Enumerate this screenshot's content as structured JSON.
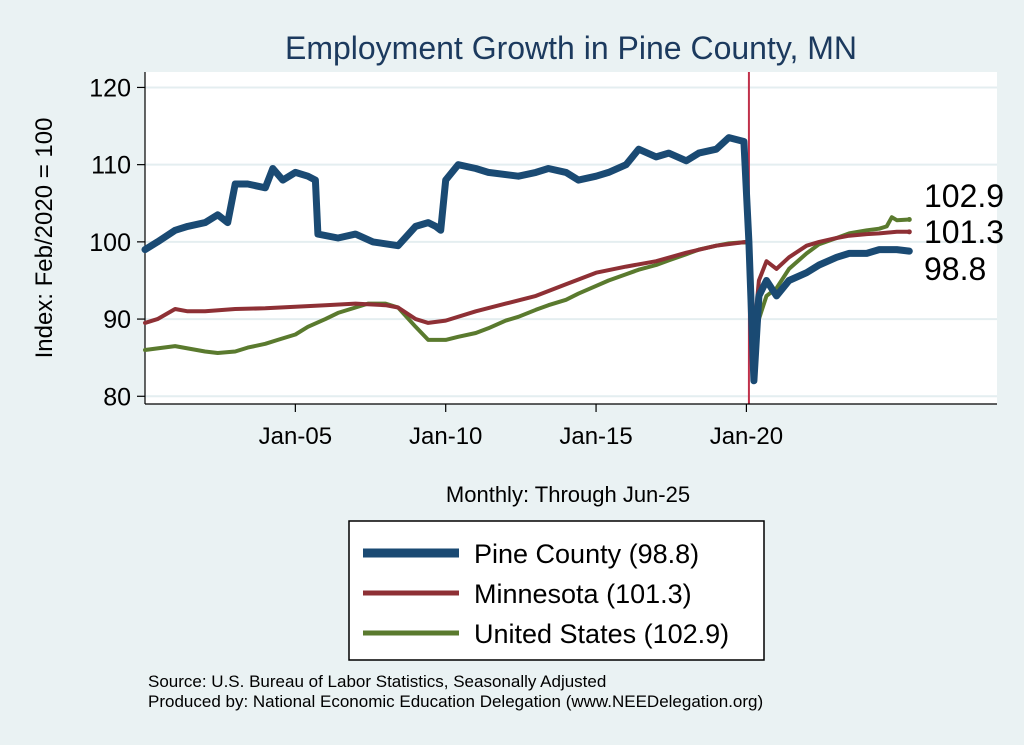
{
  "chart_data": {
    "type": "line",
    "title": "Employment Growth in Pine  County, MN",
    "ylabel": "Index: Feb/2020 = 100",
    "xlabel": "Monthly: Through Jun-25",
    "ylim": [
      79,
      122
    ],
    "xlim": [
      "2000-01",
      "2028-05"
    ],
    "yticks": [
      80,
      90,
      100,
      110,
      120
    ],
    "xticks": [
      {
        "date": "2005-01",
        "label": "Jan-05"
      },
      {
        "date": "2010-01",
        "label": "Jan-10"
      },
      {
        "date": "2015-01",
        "label": "Jan-15"
      },
      {
        "date": "2020-01",
        "label": "Jan-20"
      }
    ],
    "grid": true,
    "reference_line": {
      "date": "2020-02",
      "color": "#c0304a"
    },
    "legend_position": "bottom",
    "series": [
      {
        "name": "Pine  County (98.8)",
        "color": "#1a4a73",
        "end_label": "98.8",
        "points": [
          [
            "2000-01",
            99
          ],
          [
            "2000-06",
            100
          ],
          [
            "2001-01",
            101.5
          ],
          [
            "2001-06",
            102
          ],
          [
            "2002-01",
            102.5
          ],
          [
            "2002-06",
            103.5
          ],
          [
            "2002-10",
            102.5
          ],
          [
            "2003-01",
            107.5
          ],
          [
            "2003-06",
            107.5
          ],
          [
            "2004-01",
            107
          ],
          [
            "2004-04",
            109.5
          ],
          [
            "2004-08",
            108
          ],
          [
            "2005-01",
            109
          ],
          [
            "2005-06",
            108.5
          ],
          [
            "2005-09",
            108
          ],
          [
            "2005-10",
            101
          ],
          [
            "2006-06",
            100.5
          ],
          [
            "2007-01",
            101
          ],
          [
            "2007-08",
            100
          ],
          [
            "2008-06",
            99.5
          ],
          [
            "2009-01",
            102
          ],
          [
            "2009-06",
            102.5
          ],
          [
            "2009-09",
            102
          ],
          [
            "2009-11",
            101.5
          ],
          [
            "2010-01",
            108
          ],
          [
            "2010-06",
            110
          ],
          [
            "2011-01",
            109.5
          ],
          [
            "2011-06",
            109
          ],
          [
            "2012-06",
            108.5
          ],
          [
            "2013-01",
            109
          ],
          [
            "2013-06",
            109.5
          ],
          [
            "2014-01",
            109
          ],
          [
            "2014-06",
            108
          ],
          [
            "2015-01",
            108.5
          ],
          [
            "2015-06",
            109
          ],
          [
            "2016-01",
            110
          ],
          [
            "2016-06",
            112
          ],
          [
            "2017-01",
            111
          ],
          [
            "2017-06",
            111.5
          ],
          [
            "2018-01",
            110.5
          ],
          [
            "2018-06",
            111.5
          ],
          [
            "2019-01",
            112
          ],
          [
            "2019-06",
            113.5
          ],
          [
            "2019-12",
            113
          ],
          [
            "2020-02",
            100
          ],
          [
            "2020-04",
            82
          ],
          [
            "2020-06",
            93
          ],
          [
            "2020-09",
            95
          ],
          [
            "2021-01",
            93
          ],
          [
            "2021-06",
            95
          ],
          [
            "2022-01",
            96
          ],
          [
            "2022-06",
            97
          ],
          [
            "2023-01",
            98
          ],
          [
            "2023-06",
            98.5
          ],
          [
            "2024-01",
            98.5
          ],
          [
            "2024-06",
            99
          ],
          [
            "2025-01",
            99
          ],
          [
            "2025-06",
            98.8
          ]
        ]
      },
      {
        "name": "Minnesota (101.3)",
        "color": "#8e3035",
        "end_label": "101.3",
        "points": [
          [
            "2000-01",
            89.5
          ],
          [
            "2000-06",
            90
          ],
          [
            "2001-01",
            91.3
          ],
          [
            "2001-06",
            91.0
          ],
          [
            "2002-01",
            91.0
          ],
          [
            "2003-01",
            91.3
          ],
          [
            "2004-01",
            91.4
          ],
          [
            "2005-01",
            91.6
          ],
          [
            "2006-01",
            91.8
          ],
          [
            "2007-01",
            92.0
          ],
          [
            "2008-01",
            91.8
          ],
          [
            "2008-06",
            91.5
          ],
          [
            "2009-01",
            90.0
          ],
          [
            "2009-06",
            89.5
          ],
          [
            "2010-01",
            89.8
          ],
          [
            "2011-01",
            91.0
          ],
          [
            "2012-01",
            92.0
          ],
          [
            "2013-01",
            93.0
          ],
          [
            "2014-01",
            94.5
          ],
          [
            "2015-01",
            96.0
          ],
          [
            "2016-01",
            96.8
          ],
          [
            "2017-01",
            97.5
          ],
          [
            "2018-01",
            98.6
          ],
          [
            "2019-01",
            99.5
          ],
          [
            "2020-01",
            100.0
          ],
          [
            "2020-02",
            100.0
          ],
          [
            "2020-04",
            88.0
          ],
          [
            "2020-06",
            95.0
          ],
          [
            "2020-09",
            97.5
          ],
          [
            "2021-01",
            96.5
          ],
          [
            "2021-06",
            98.0
          ],
          [
            "2022-01",
            99.5
          ],
          [
            "2022-06",
            100.0
          ],
          [
            "2023-01",
            100.5
          ],
          [
            "2023-06",
            100.8
          ],
          [
            "2024-01",
            101.0
          ],
          [
            "2024-06",
            101.1
          ],
          [
            "2025-01",
            101.3
          ],
          [
            "2025-06",
            101.3
          ]
        ]
      },
      {
        "name": "United States (102.9)",
        "color": "#5a7a2e",
        "end_label": "102.9",
        "points": [
          [
            "2000-01",
            86.0
          ],
          [
            "2000-06",
            86.2
          ],
          [
            "2001-01",
            86.5
          ],
          [
            "2001-06",
            86.2
          ],
          [
            "2002-01",
            85.8
          ],
          [
            "2002-06",
            85.6
          ],
          [
            "2003-01",
            85.8
          ],
          [
            "2003-06",
            86.3
          ],
          [
            "2004-01",
            86.8
          ],
          [
            "2004-06",
            87.3
          ],
          [
            "2005-01",
            88.0
          ],
          [
            "2005-06",
            89.0
          ],
          [
            "2006-01",
            90.0
          ],
          [
            "2006-06",
            90.8
          ],
          [
            "2007-01",
            91.5
          ],
          [
            "2007-06",
            92.0
          ],
          [
            "2008-01",
            92.0
          ],
          [
            "2008-06",
            91.5
          ],
          [
            "2009-01",
            89.0
          ],
          [
            "2009-06",
            87.3
          ],
          [
            "2010-01",
            87.3
          ],
          [
            "2010-06",
            87.7
          ],
          [
            "2011-01",
            88.2
          ],
          [
            "2011-06",
            88.8
          ],
          [
            "2012-01",
            89.8
          ],
          [
            "2012-06",
            90.3
          ],
          [
            "2013-01",
            91.2
          ],
          [
            "2013-06",
            91.8
          ],
          [
            "2014-01",
            92.5
          ],
          [
            "2014-06",
            93.3
          ],
          [
            "2015-01",
            94.3
          ],
          [
            "2015-06",
            95.0
          ],
          [
            "2016-01",
            95.8
          ],
          [
            "2016-06",
            96.4
          ],
          [
            "2017-01",
            97.0
          ],
          [
            "2017-06",
            97.6
          ],
          [
            "2018-01",
            98.4
          ],
          [
            "2018-06",
            99.0
          ],
          [
            "2019-01",
            99.5
          ],
          [
            "2019-06",
            99.8
          ],
          [
            "2020-02",
            100.0
          ],
          [
            "2020-04",
            85.5
          ],
          [
            "2020-06",
            90.0
          ],
          [
            "2020-09",
            93.0
          ],
          [
            "2021-01",
            94.0
          ],
          [
            "2021-06",
            96.5
          ],
          [
            "2022-01",
            98.5
          ],
          [
            "2022-06",
            99.7
          ],
          [
            "2023-01",
            100.5
          ],
          [
            "2023-06",
            101.1
          ],
          [
            "2024-01",
            101.5
          ],
          [
            "2024-06",
            101.7
          ],
          [
            "2024-09",
            102.0
          ],
          [
            "2024-11",
            103.2
          ],
          [
            "2025-01",
            102.8
          ],
          [
            "2025-06",
            102.9
          ]
        ]
      }
    ]
  },
  "source": {
    "line1": "Source: U.S. Bureau of Labor Statistics, Seasonally Adjusted",
    "line2": "Produced by: National Economic Education Delegation (www.NEEDelegation.org)"
  }
}
